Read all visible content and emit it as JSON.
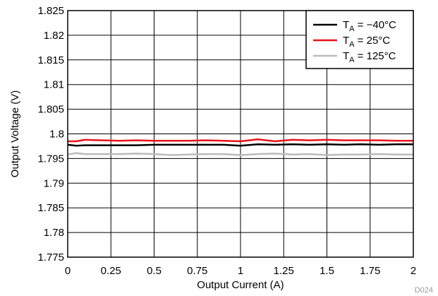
{
  "chart_data": {
    "type": "line",
    "xlabel": "Output Current (A)",
    "ylabel": "Output Voltage (V)",
    "xlim": [
      0,
      2
    ],
    "ylim": [
      1.775,
      1.825
    ],
    "x_ticks": [
      "0",
      "0.25",
      "0.5",
      "0.75",
      "1",
      "1.25",
      "1.5",
      "1.75",
      "2"
    ],
    "y_ticks": [
      "1.775",
      "1.78",
      "1.785",
      "1.79",
      "1.795",
      "1.8",
      "1.805",
      "1.81",
      "1.815",
      "1.82",
      "1.825"
    ],
    "grid": true,
    "legend_position": "top-right",
    "figure_id": "D024",
    "x": [
      0,
      0.05,
      0.1,
      0.2,
      0.3,
      0.4,
      0.5,
      0.6,
      0.7,
      0.8,
      0.9,
      1.0,
      1.1,
      1.2,
      1.3,
      1.4,
      1.5,
      1.6,
      1.7,
      1.8,
      1.9,
      2.0
    ],
    "series": [
      {
        "legend_main": "T",
        "legend_sub": "A",
        "legend_rest": " = −40°C",
        "color": "#000000",
        "values": [
          1.7978,
          1.7976,
          1.7977,
          1.7977,
          1.7977,
          1.7977,
          1.7978,
          1.7978,
          1.7978,
          1.7978,
          1.7978,
          1.7976,
          1.7979,
          1.7978,
          1.7979,
          1.7978,
          1.7979,
          1.7978,
          1.7979,
          1.7978,
          1.7979,
          1.7979
        ]
      },
      {
        "legend_main": "T",
        "legend_sub": "A",
        "legend_rest": " = 25°C",
        "color": "#e8141a",
        "values": [
          1.7985,
          1.7985,
          1.7988,
          1.7987,
          1.7986,
          1.7987,
          1.7986,
          1.7986,
          1.7986,
          1.7987,
          1.7986,
          1.7985,
          1.7989,
          1.7985,
          1.7988,
          1.7987,
          1.7988,
          1.7987,
          1.7987,
          1.7987,
          1.7986,
          1.7986
        ]
      },
      {
        "legend_main": "T",
        "legend_sub": "A",
        "legend_rest": " = 125°C",
        "color": "#bbbbbb",
        "values": [
          1.7958,
          1.7961,
          1.7959,
          1.7959,
          1.7959,
          1.796,
          1.7959,
          1.7957,
          1.7958,
          1.7959,
          1.7959,
          1.7957,
          1.7959,
          1.796,
          1.7958,
          1.7959,
          1.7957,
          1.7958,
          1.7958,
          1.7959,
          1.7958,
          1.7958
        ]
      }
    ]
  }
}
